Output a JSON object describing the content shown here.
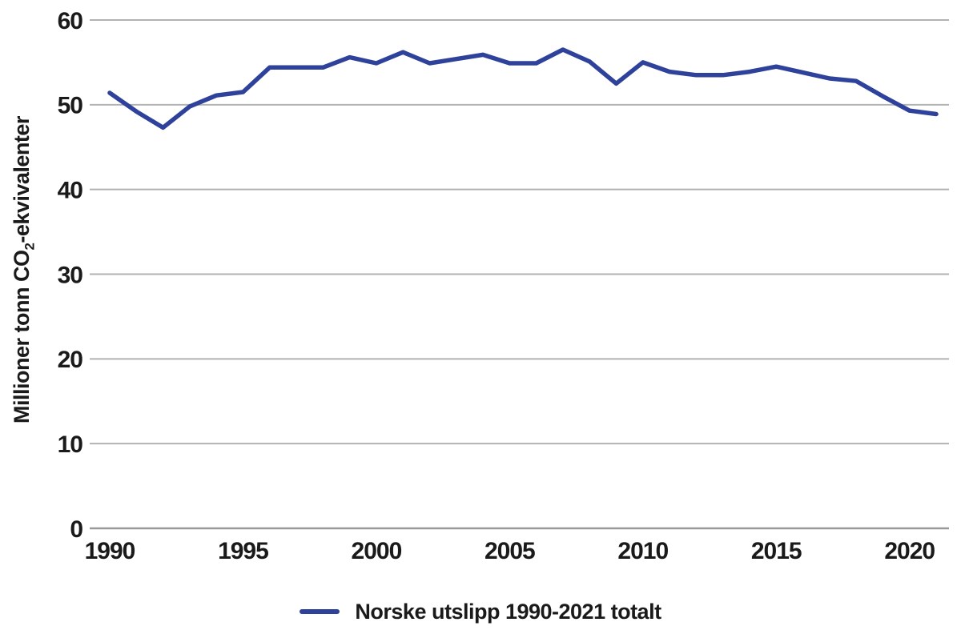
{
  "page": {
    "background": "#ffffff"
  },
  "colors": {
    "line": "#2f429b",
    "grid": "#b2b2b2",
    "axis": "#999999",
    "text": "#1a1a1a"
  },
  "chart_data": {
    "type": "line",
    "title": "",
    "ylabel": "Millioner tonn CO2-ekvivalenter",
    "ylabel_parts": {
      "prefix": "Millioner tonn CO",
      "sub": "2",
      "suffix": "-ekvivalenter"
    },
    "xlabel": "",
    "x": [
      1990,
      1991,
      1992,
      1993,
      1994,
      1995,
      1996,
      1997,
      1998,
      1999,
      2000,
      2001,
      2002,
      2003,
      2004,
      2005,
      2006,
      2007,
      2008,
      2009,
      2010,
      2011,
      2012,
      2013,
      2014,
      2015,
      2016,
      2017,
      2018,
      2019,
      2020,
      2021
    ],
    "series": [
      {
        "name": "Norske utslipp 1990-2021 totalt",
        "color": "#2f429b",
        "values": [
          51.4,
          49.2,
          47.3,
          49.8,
          51.1,
          51.5,
          54.4,
          54.4,
          54.4,
          55.6,
          54.9,
          56.2,
          54.9,
          55.4,
          55.9,
          54.9,
          54.9,
          56.5,
          55.1,
          52.5,
          55.0,
          53.9,
          53.5,
          53.5,
          53.9,
          54.5,
          53.8,
          53.1,
          52.8,
          51.0,
          49.3,
          48.9
        ]
      }
    ],
    "ylim": [
      0,
      60
    ],
    "yticks": [
      0,
      10,
      20,
      30,
      40,
      50,
      60
    ],
    "xticks": [
      1990,
      1995,
      2000,
      2005,
      2010,
      2015,
      2020
    ],
    "grid": "horizontal",
    "legend_position": "bottom",
    "legend": [
      {
        "label": "Norske utslipp 1990-2021 totalt",
        "color": "#2f429b"
      }
    ]
  }
}
